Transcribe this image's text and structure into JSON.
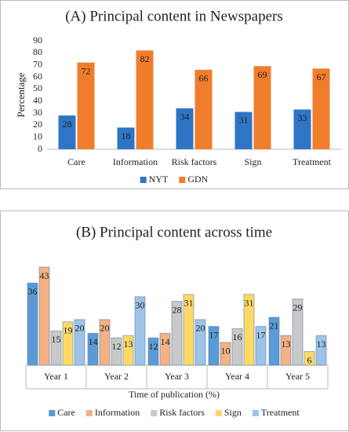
{
  "chart_data": [
    {
      "type": "bar",
      "title": "(A) Principal content in Newspapers",
      "y_label": "Percentage",
      "categories": [
        "Care",
        "Information",
        "Risk factors",
        "Sign",
        "Treatment"
      ],
      "series": [
        {
          "name": "NYT",
          "color": "#2e75c6",
          "values": [
            28,
            18,
            34,
            31,
            33
          ]
        },
        {
          "name": "GDN",
          "color": "#f07d2c",
          "values": [
            72,
            82,
            66,
            69,
            67
          ]
        }
      ],
      "ylim": [
        0,
        90
      ],
      "yticks": [
        0,
        10,
        20,
        30,
        40,
        50,
        60,
        70,
        80,
        90
      ],
      "grid": false,
      "legend": "bottom"
    },
    {
      "type": "bar",
      "title": "(B) Principal content across time",
      "x_label": "Time of publication (%)",
      "categories": [
        "Year 1",
        "Year 2",
        "Year 3",
        "Year 4",
        "Year 5"
      ],
      "series": [
        {
          "name": "Care",
          "color": "#5b9bd5",
          "values": [
            36,
            14,
            12,
            17,
            21
          ]
        },
        {
          "name": "Information",
          "color": "#f4b183",
          "values": [
            43,
            20,
            14,
            10,
            13
          ]
        },
        {
          "name": "Risk factors",
          "color": "#c9c9c9",
          "values": [
            15,
            12,
            28,
            16,
            29
          ]
        },
        {
          "name": "Sign",
          "color": "#ffd966",
          "values": [
            19,
            13,
            31,
            31,
            6
          ]
        },
        {
          "name": "Treatment",
          "color": "#9dc3e6",
          "values": [
            20,
            30,
            20,
            17,
            13
          ]
        }
      ],
      "grid": false,
      "legend": "bottom"
    }
  ]
}
